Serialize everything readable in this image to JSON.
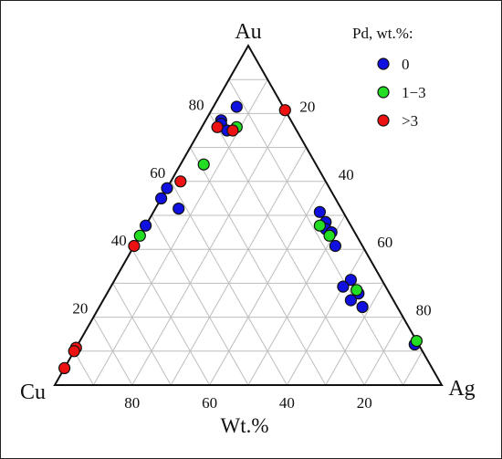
{
  "chart_data": {
    "type": "scatter",
    "subtype": "ternary",
    "title": "",
    "vertex_labels": {
      "top": "Au",
      "left": "Cu",
      "right": "Ag"
    },
    "axis_label": "Wt.%",
    "bottom_ticks": [
      "80",
      "60",
      "40",
      "20"
    ],
    "left_ticks": [
      "20",
      "40",
      "60",
      "80"
    ],
    "right_ticks": [
      "20",
      "40",
      "60",
      "80"
    ],
    "grid": true,
    "legend": {
      "title": "Pd, wt.%:",
      "placement": "top-right",
      "items": [
        {
          "label": "0",
          "color": "#1010e0"
        },
        {
          "label": "1−3",
          "color": "#22dd22"
        },
        {
          "label": ">3",
          "color": "#ee1111"
        }
      ]
    },
    "series": [
      {
        "name": "0",
        "color": "#1010e0",
        "points": [
          {
            "au": 82,
            "ag": 6,
            "cu": 12
          },
          {
            "au": 78,
            "ag": 4,
            "cu": 18
          },
          {
            "au": 77,
            "ag": 4.5,
            "cu": 18.5
          },
          {
            "au": 75,
            "ag": 7,
            "cu": 18
          },
          {
            "au": 58,
            "ag": 0,
            "cu": 42
          },
          {
            "au": 55,
            "ag": 0,
            "cu": 45
          },
          {
            "au": 52,
            "ag": 6,
            "cu": 42
          },
          {
            "au": 47,
            "ag": 0,
            "cu": 53
          },
          {
            "au": 51,
            "ag": 43,
            "cu": 6
          },
          {
            "au": 48,
            "ag": 46,
            "cu": 6
          },
          {
            "au": 46,
            "ag": 47,
            "cu": 7
          },
          {
            "au": 45,
            "ag": 49,
            "cu": 6
          },
          {
            "au": 41,
            "ag": 52,
            "cu": 7
          },
          {
            "au": 31,
            "ag": 61,
            "cu": 8
          },
          {
            "au": 27,
            "ag": 65,
            "cu": 8
          },
          {
            "au": 29,
            "ag": 60,
            "cu": 11
          },
          {
            "au": 25,
            "ag": 64,
            "cu": 11
          },
          {
            "au": 23,
            "ag": 68,
            "cu": 9
          },
          {
            "au": 12,
            "ag": 87,
            "cu": 1
          }
        ]
      },
      {
        "name": "1−3",
        "color": "#22dd22",
        "points": [
          {
            "au": 76,
            "ag": 9,
            "cu": 15
          },
          {
            "au": 65,
            "ag": 6,
            "cu": 29
          },
          {
            "au": 47,
            "ag": 45,
            "cu": 8
          },
          {
            "au": 44,
            "ag": 49,
            "cu": 7
          },
          {
            "au": 44,
            "ag": 0,
            "cu": 56
          },
          {
            "au": 28,
            "ag": 64,
            "cu": 8
          },
          {
            "au": 13,
            "ag": 87,
            "cu": 0
          }
        ]
      },
      {
        "name": ">3",
        "color": "#ee1111",
        "points": [
          {
            "au": 81,
            "ag": 19,
            "cu": 0
          },
          {
            "au": 76,
            "ag": 4,
            "cu": 20
          },
          {
            "au": 75,
            "ag": 8.5,
            "cu": 16.5
          },
          {
            "au": 60,
            "ag": 2.5,
            "cu": 37.5
          },
          {
            "au": 41,
            "ag": 0,
            "cu": 59
          },
          {
            "au": 11,
            "ag": 0,
            "cu": 89
          },
          {
            "au": 10,
            "ag": 0,
            "cu": 90
          },
          {
            "au": 5,
            "ag": 0,
            "cu": 95
          }
        ]
      }
    ]
  }
}
